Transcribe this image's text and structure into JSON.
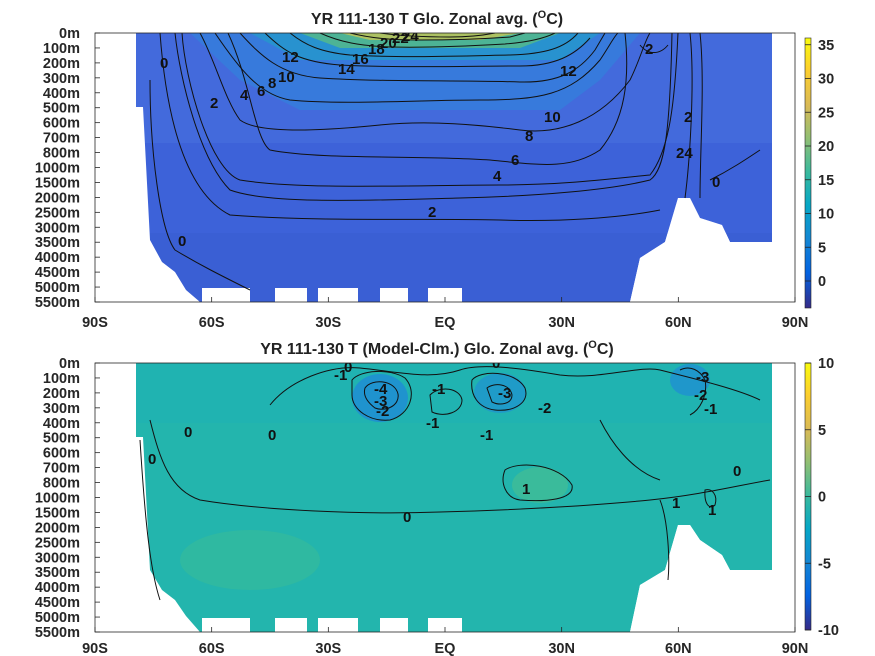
{
  "chart_data": [
    {
      "type": "heatmap",
      "title_prefix": "YR 111-130 T Glo. Zonal avg. (",
      "title_unit": "O",
      "title_suffix": "C)",
      "x_ticks": [
        "90S",
        "60S",
        "30S",
        "EQ",
        "30N",
        "60N",
        "90N"
      ],
      "y_ticks": [
        "0m",
        "100m",
        "200m",
        "300m",
        "400m",
        "500m",
        "600m",
        "700m",
        "800m",
        "1000m",
        "1500m",
        "2000m",
        "2500m",
        "3000m",
        "3500m",
        "4000m",
        "4500m",
        "5000m",
        "5500m"
      ],
      "xlim": [
        -90,
        90
      ],
      "colorbar_ticks": [
        "35",
        "30",
        "25",
        "20",
        "15",
        "10",
        "5",
        "0"
      ],
      "colorbar_range": [
        -4,
        36
      ],
      "contour_labels": [
        "0",
        "2",
        "4",
        "6",
        "8",
        "10",
        "12",
        "14",
        "16",
        "18",
        "20",
        "22",
        "24",
        "12",
        "10",
        "8",
        "6",
        "4",
        "2",
        "2",
        "24",
        "0",
        "2",
        "0"
      ]
    },
    {
      "type": "heatmap",
      "title_prefix": "YR 111-130 T (Model-Clm.) Glo. Zonal avg. (",
      "title_unit": "O",
      "title_suffix": "C)",
      "x_ticks": [
        "90S",
        "60S",
        "30S",
        "EQ",
        "30N",
        "60N",
        "90N"
      ],
      "y_ticks": [
        "0m",
        "100m",
        "200m",
        "300m",
        "400m",
        "500m",
        "600m",
        "700m",
        "800m",
        "1000m",
        "1500m",
        "2000m",
        "2500m",
        "3000m",
        "3500m",
        "4000m",
        "4500m",
        "5000m",
        "5500m"
      ],
      "xlim": [
        -90,
        90
      ],
      "colorbar_ticks": [
        "10",
        "5",
        "0",
        "-5",
        "-10"
      ],
      "colorbar_range": [
        -10,
        10
      ],
      "contour_labels": [
        "0",
        "-1",
        "-4",
        "-3",
        "-2",
        "-1",
        "-1",
        "0",
        "-3",
        "-2",
        "-1",
        "0",
        "0",
        "0",
        "1",
        "0",
        "1",
        "1",
        "-3",
        "-2",
        "-1",
        "0"
      ]
    }
  ]
}
